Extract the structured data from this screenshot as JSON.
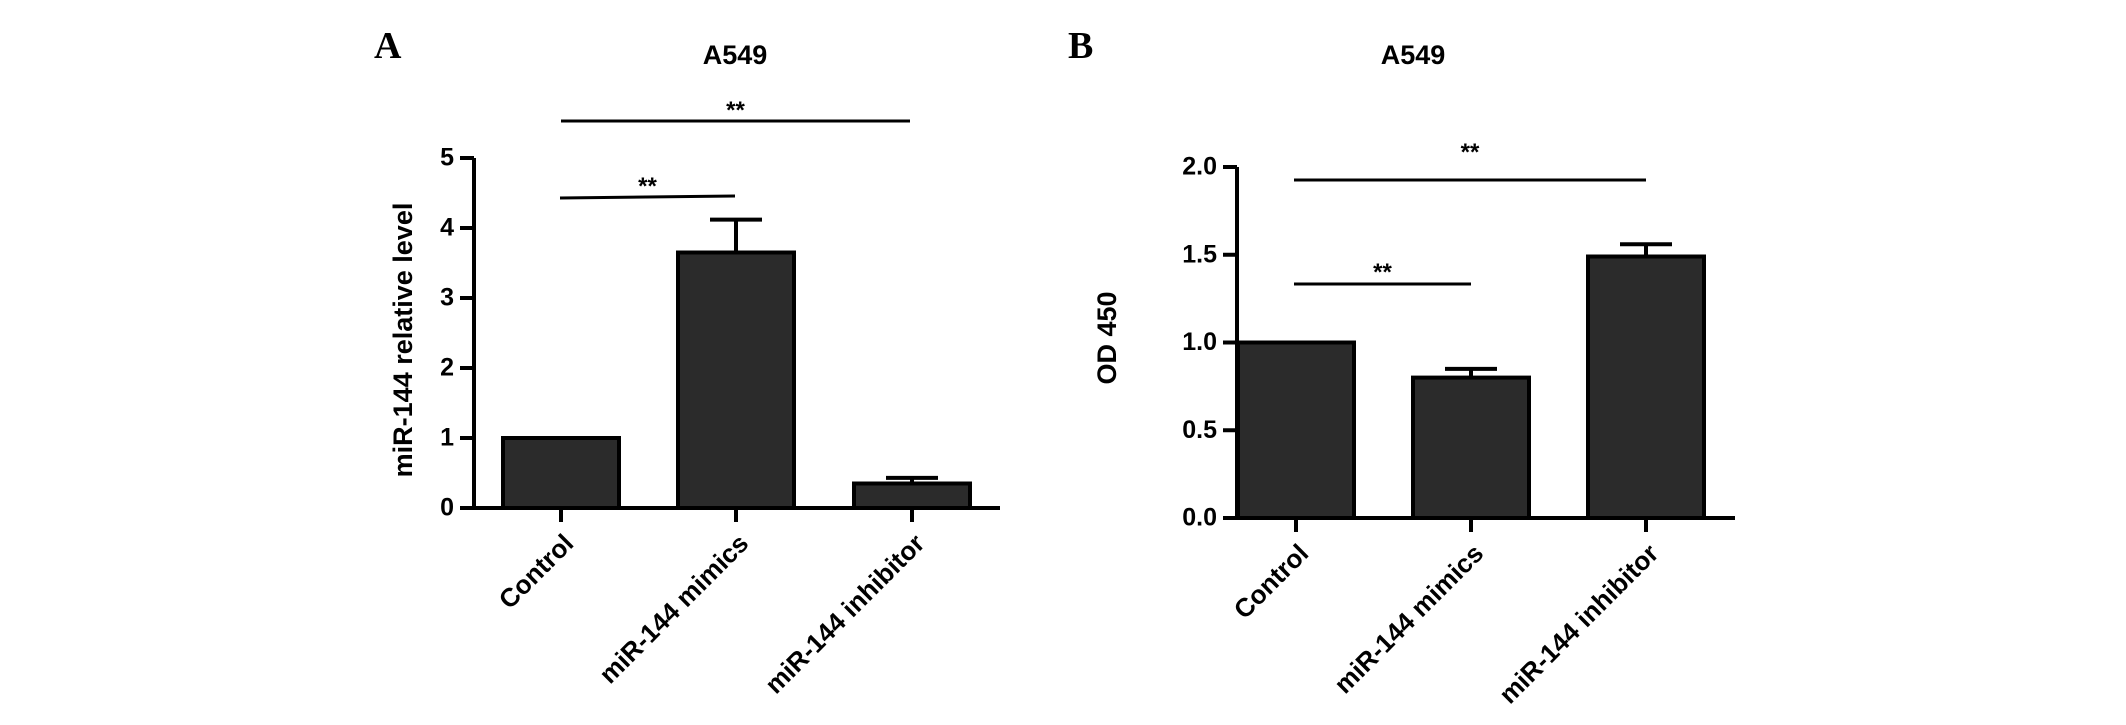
{
  "chart_data": [
    {
      "panel": "A",
      "type": "bar",
      "title": "A549",
      "ylabel": "miR-144 relative level",
      "xlabel": "",
      "categories": [
        "Control",
        "miR-144 mimics",
        "miR-144 inhibitor"
      ],
      "values": [
        1.0,
        3.65,
        0.35
      ],
      "errors": [
        0.0,
        0.47,
        0.08
      ],
      "ylim": [
        0,
        5
      ],
      "yticks": [
        "0",
        "1",
        "2",
        "3",
        "4",
        "5"
      ],
      "significance": [
        {
          "from": 0,
          "to": 1,
          "label": "**"
        },
        {
          "from": 0,
          "to": 2,
          "label": "**"
        }
      ]
    },
    {
      "panel": "B",
      "type": "bar",
      "title": "A549",
      "ylabel": "OD 450",
      "xlabel": "",
      "categories": [
        "Control",
        "miR-144 mimics",
        "miR-144 inhibitor"
      ],
      "values": [
        1.0,
        0.8,
        1.49
      ],
      "errors": [
        0.0,
        0.05,
        0.07
      ],
      "ylim": [
        0,
        2
      ],
      "yticks": [
        "0.0",
        "0.5",
        "1.0",
        "1.5",
        "2.0"
      ],
      "significance": [
        {
          "from": 0,
          "to": 1,
          "label": "**"
        },
        {
          "from": 0,
          "to": 2,
          "label": "**"
        }
      ]
    }
  ],
  "colors": {
    "bar_fill": "#2b2b2b",
    "stroke": "#000000"
  }
}
